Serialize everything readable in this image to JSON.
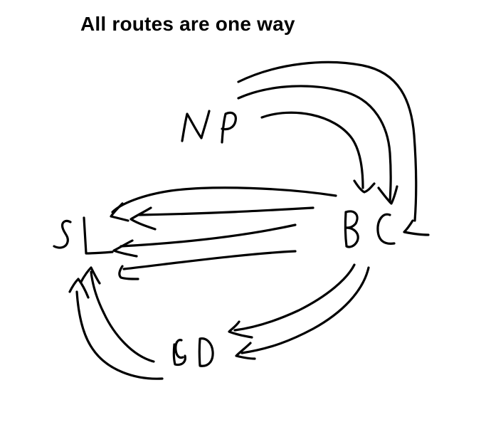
{
  "title": "All routes are one way",
  "nodes": {
    "np": "NP",
    "sl": "SL",
    "bc": "BC",
    "bd": "BD"
  },
  "colors": {
    "ink": "#000000",
    "background": "#ffffff"
  }
}
